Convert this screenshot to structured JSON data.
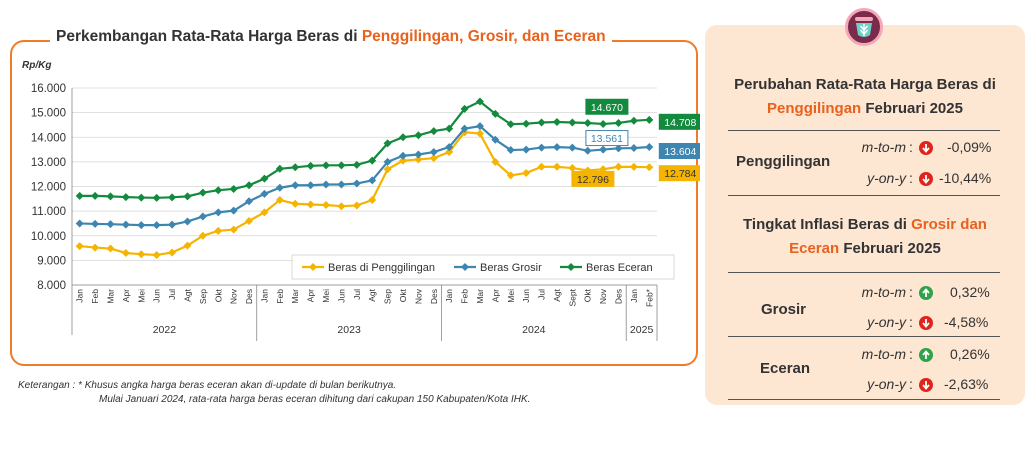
{
  "chart_data": {
    "type": "line",
    "title_parts": [
      "Perkembangan Rata-Rata Harga Beras di ",
      "Penggilingan, Grosir, dan Eceran"
    ],
    "ylabel": "Rp/Kg",
    "ylim": [
      8000,
      16000
    ],
    "y_ticks": [
      "8.000",
      "9.000",
      "10.000",
      "11.000",
      "12.000",
      "13.000",
      "14.000",
      "15.000",
      "16.000"
    ],
    "categories": [
      "Jan",
      "Feb",
      "Mar",
      "Apr",
      "Mei",
      "Jun",
      "Jul",
      "Agt",
      "Sep",
      "Okt",
      "Nov",
      "Des",
      "Jan",
      "Feb",
      "Mar",
      "Apr",
      "Mei",
      "Jun",
      "Jul",
      "Agt",
      "Sep",
      "Okt",
      "Nov",
      "Des",
      "Jan",
      "Feb",
      "Mar",
      "Apr",
      "Mei",
      "Jun",
      "Jul",
      "Agt",
      "Sept",
      "Okt",
      "Nov",
      "Des",
      "Jan",
      "Feb*"
    ],
    "year_groups": [
      {
        "label": "2022",
        "count": 12
      },
      {
        "label": "2023",
        "count": 12
      },
      {
        "label": "2024",
        "count": 12
      },
      {
        "label": "2025",
        "count": 2
      }
    ],
    "legend_placement": "bottom-right",
    "series": [
      {
        "name": "Beras di Penggilingan",
        "color": "#f5b400",
        "values": [
          9580,
          9520,
          9480,
          9300,
          9250,
          9220,
          9320,
          9600,
          10000,
          10200,
          10250,
          10600,
          10950,
          11450,
          11300,
          11270,
          11250,
          11200,
          11230,
          11450,
          12700,
          13050,
          13100,
          13150,
          13400,
          14200,
          14150,
          13000,
          12450,
          12550,
          12800,
          12800,
          12750,
          12650,
          12700,
          12800,
          12796,
          12784
        ]
      },
      {
        "name": "Beras Grosir",
        "color": "#3d86b0",
        "values": [
          10500,
          10480,
          10470,
          10450,
          10430,
          10430,
          10450,
          10580,
          10780,
          10950,
          11020,
          11400,
          11700,
          11950,
          12050,
          12050,
          12080,
          12080,
          12120,
          12250,
          13000,
          13250,
          13300,
          13400,
          13600,
          14350,
          14450,
          13900,
          13480,
          13500,
          13580,
          13600,
          13580,
          13450,
          13500,
          13550,
          13561,
          13604
        ]
      },
      {
        "name": "Beras Eceran",
        "color": "#138a3e",
        "values": [
          11620,
          11620,
          11600,
          11570,
          11550,
          11540,
          11560,
          11600,
          11750,
          11850,
          11900,
          12050,
          12320,
          12720,
          12780,
          12840,
          12860,
          12860,
          12880,
          13050,
          13750,
          14000,
          14080,
          14250,
          14350,
          15150,
          15450,
          14950,
          14530,
          14550,
          14600,
          14620,
          14600,
          14580,
          14540,
          14580,
          14670,
          14708
        ]
      }
    ],
    "data_labels": [
      {
        "series": "Beras Eceran",
        "index": 36,
        "text": "14.670",
        "style": "fill"
      },
      {
        "series": "Beras Eceran",
        "index": 37,
        "text": "14.708",
        "style": "fill"
      },
      {
        "series": "Beras Grosir",
        "index": 36,
        "text": "13.561",
        "style": "outline"
      },
      {
        "series": "Beras Grosir",
        "index": 37,
        "text": "13.604",
        "style": "fill"
      },
      {
        "series": "Beras di Penggilingan",
        "index": 36,
        "text": "12.796",
        "style": "fill"
      },
      {
        "series": "Beras di Penggilingan",
        "index": 37,
        "text": "12.784",
        "style": "fill"
      }
    ]
  },
  "panel": {
    "title1_parts": [
      "Perubahan Rata-Rata Harga Beras di",
      "Penggilingan",
      " Februari 2025"
    ],
    "penggilingan": {
      "label": "Penggilingan",
      "mtm": {
        "key": "m-to-m",
        "value": "-0,09%",
        "dir": "down"
      },
      "yoy": {
        "key": "y-on-y",
        "value": "-10,44%",
        "dir": "down"
      }
    },
    "title2_parts": [
      "Tingkat Inflasi Beras di ",
      "Grosir dan",
      "Eceran",
      " Februari 2025"
    ],
    "grosir": {
      "label": "Grosir",
      "mtm": {
        "key": "m-to-m",
        "value": "0,32%",
        "dir": "up"
      },
      "yoy": {
        "key": "y-on-y",
        "value": "-4,58%",
        "dir": "down"
      }
    },
    "eceran": {
      "label": "Eceran",
      "mtm": {
        "key": "m-to-m",
        "value": "0,26%",
        "dir": "up"
      },
      "yoy": {
        "key": "y-on-y",
        "value": "-2,63%",
        "dir": "down"
      }
    },
    "colon": ":"
  },
  "notes": {
    "line1": "Keterangan :  * Khusus angka harga beras eceran akan di-update di bulan berikutnya.",
    "line2": "Mulai Januari 2024, rata-rata harga beras eceran dihitung dari cakupan 150 Kabupaten/Kota IHK."
  }
}
